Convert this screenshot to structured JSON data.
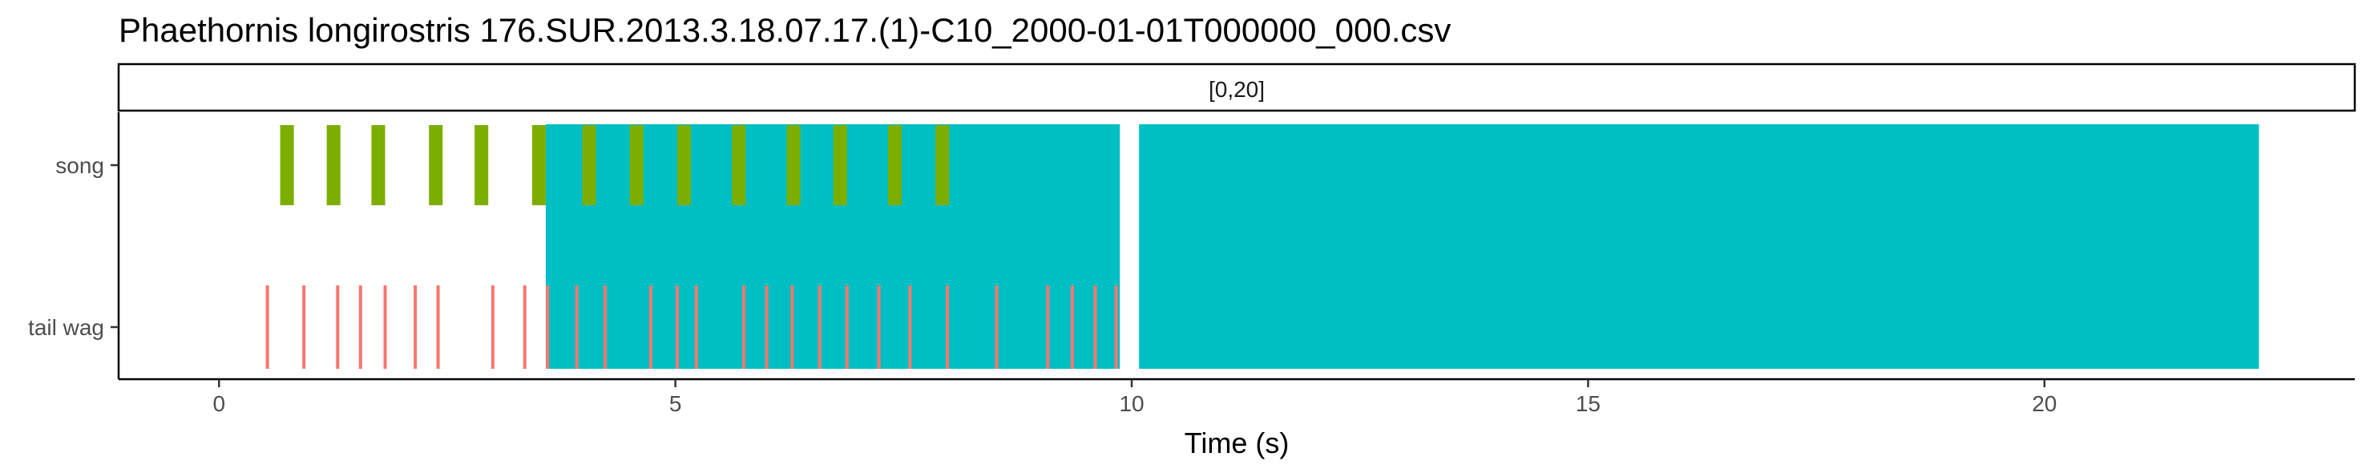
{
  "chart_data": {
    "type": "timeline",
    "title": "Phaethornis longirostris   176.SUR.2013.3.18.07.17.(1)-C10_2000-01-01T000000_000.csv",
    "facet_label": "[0,20]",
    "xlabel": "Time (s)",
    "ylabel": "",
    "xlim": [
      -1.1,
      23.4
    ],
    "x_ticks": [
      0,
      5,
      10,
      15,
      20
    ],
    "x_tick_labels": [
      "0",
      "5",
      "10",
      "15",
      "20"
    ],
    "categories": [
      "song",
      "tail wag"
    ],
    "grid": false,
    "series": [
      {
        "name": "",
        "category": "song",
        "color": "#7CAE00",
        "intervals": [
          [
            0.67,
            0.82
          ],
          [
            1.18,
            1.33
          ],
          [
            1.67,
            1.82
          ],
          [
            2.3,
            2.45
          ],
          [
            2.8,
            2.95
          ],
          [
            3.43,
            3.58
          ],
          [
            3.98,
            4.13
          ],
          [
            4.5,
            4.65
          ],
          [
            5.02,
            5.17
          ],
          [
            5.62,
            5.77
          ],
          [
            6.22,
            6.37
          ],
          [
            6.73,
            6.88
          ],
          [
            7.33,
            7.48
          ],
          [
            7.85,
            8.0
          ]
        ]
      },
      {
        "name": "",
        "category": "tail wag",
        "color": "#F8766D",
        "events": [
          0.53,
          0.93,
          1.3,
          1.55,
          1.82,
          2.15,
          2.4,
          3.0,
          3.35,
          3.6,
          3.92,
          4.23,
          4.73,
          5.02,
          5.23,
          5.75,
          6.0,
          6.28,
          6.58,
          6.88,
          7.23,
          7.57,
          7.98,
          8.52,
          9.08,
          9.35,
          9.6,
          9.83
        ]
      },
      {
        "name": "",
        "category": "all",
        "color": "#00BFC4",
        "intervals": [
          [
            3.58,
            9.87
          ],
          [
            10.08,
            22.35
          ]
        ]
      }
    ]
  }
}
